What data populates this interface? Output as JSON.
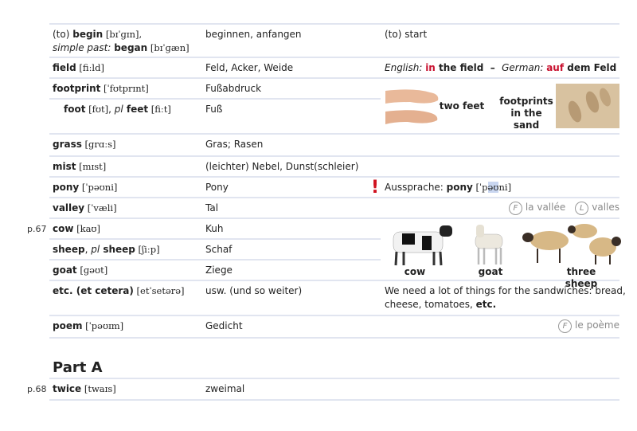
{
  "entries": [
    {
      "en": [
        [
          {
            "text": "(to) "
          },
          {
            "text": "begin",
            "style": "bold"
          },
          {
            "text": " [bɪˈɡɪn],",
            "style": "phonetic"
          }
        ],
        [
          {
            "text": "simple past: ",
            "style": "italic"
          },
          {
            "text": "began",
            "style": "bold"
          },
          {
            "text": " [bɪˈɡæn]",
            "style": "phonetic"
          }
        ]
      ],
      "de": "beginnen, anfangen",
      "note": [
        [
          {
            "text": "(to) start"
          }
        ]
      ]
    },
    {
      "en": [
        [
          {
            "text": "field",
            "style": "bold"
          },
          {
            "text": " [fiːld]",
            "style": "phonetic"
          }
        ]
      ],
      "de": "Feld, Acker, Weide",
      "note": [
        [
          {
            "text": "English: ",
            "style": "italic"
          },
          {
            "text": "in",
            "style": "red"
          },
          {
            "text": " the field  –  ",
            "style": "bold"
          },
          {
            "text": "German: ",
            "style": "italic"
          },
          {
            "text": "auf",
            "style": "red"
          },
          {
            "text": " dem Feld",
            "style": "bold"
          }
        ]
      ]
    },
    {
      "en": [
        [
          {
            "text": "footprint",
            "style": "bold"
          },
          {
            "text": " [ˈfʊtprɪnt]",
            "style": "phonetic"
          }
        ]
      ],
      "de": "Fußabdruck"
    },
    {
      "en": [
        [
          {
            "text": "foot",
            "style": "bold"
          },
          {
            "text": " [fʊt]",
            "style": "phonetic"
          },
          {
            "text": ", "
          },
          {
            "text": "pl",
            "style": "italic"
          },
          {
            "text": " feet",
            "style": "bold"
          },
          {
            "text": " [fiːt]",
            "style": "phonetic"
          }
        ]
      ],
      "de": "Fuß"
    },
    {
      "en": [
        [
          {
            "text": "grass",
            "style": "bold"
          },
          {
            "text": " [ɡrɑːs]",
            "style": "phonetic"
          }
        ]
      ],
      "de": "Gras; Rasen"
    },
    {
      "en": [
        [
          {
            "text": "mist",
            "style": "bold"
          },
          {
            "text": " [mɪst]",
            "style": "phonetic"
          }
        ]
      ],
      "de": "(leichter) Nebel, Dunst(schleier)"
    },
    {
      "en": [
        [
          {
            "text": "pony",
            "style": "bold"
          },
          {
            "text": " [ˈpəʊni]",
            "style": "phonetic"
          }
        ]
      ],
      "de": "Pony",
      "alert": "!",
      "note": [
        [
          {
            "text": "Aussprache: "
          },
          {
            "text": "pony",
            "style": "bold"
          },
          {
            "text": " [ˈp",
            "style": "phonetic"
          },
          {
            "text": "əʊ",
            "style": "highlight"
          },
          {
            "text": "ni]",
            "style": "phonetic"
          }
        ]
      ]
    },
    {
      "en": [
        [
          {
            "text": "valley",
            "style": "bold"
          },
          {
            "text": " [ˈvæli]",
            "style": "phonetic"
          }
        ]
      ],
      "de": "Tal",
      "cognates": [
        {
          "lang": "F",
          "word": "la vallée"
        },
        {
          "lang": "L",
          "word": "valles"
        }
      ]
    },
    {
      "margin": "p.67",
      "en": [
        [
          {
            "text": "cow",
            "style": "bold"
          },
          {
            "text": " [kaʊ]",
            "style": "phonetic"
          }
        ]
      ],
      "de": "Kuh"
    },
    {
      "en": [
        [
          {
            "text": "sheep",
            "style": "bold"
          },
          {
            "text": ", "
          },
          {
            "text": "pl",
            "style": "italic"
          },
          {
            "text": " sheep",
            "style": "bold"
          },
          {
            "text": " [ʃiːp]",
            "style": "phonetic"
          }
        ]
      ],
      "de": "Schaf"
    },
    {
      "en": [
        [
          {
            "text": "goat",
            "style": "bold"
          },
          {
            "text": " [ɡəʊt]",
            "style": "phonetic"
          }
        ]
      ],
      "de": "Ziege"
    },
    {
      "en": [
        [
          {
            "text": "etc. (et cetera)",
            "style": "bold"
          },
          {
            "text": " [etˈsetərə]",
            "style": "phonetic"
          }
        ]
      ],
      "de": "usw. (und so weiter)",
      "note": [
        [
          {
            "text": "We need a lot of things for the sandwiches: bread,"
          }
        ],
        [
          {
            "text": "cheese, tomatoes, "
          },
          {
            "text": "etc.",
            "style": "bold"
          }
        ]
      ]
    },
    {
      "en": [
        [
          {
            "text": "poem",
            "style": "bold"
          },
          {
            "text": " [ˈpəʊɪm]",
            "style": "phonetic"
          }
        ]
      ],
      "de": "Gedicht",
      "cognates": [
        {
          "lang": "F",
          "word": "le poème"
        }
      ]
    }
  ],
  "feet_images": [
    "two feet",
    "footprints in the sand"
  ],
  "animal_images": [
    "cow",
    "goat",
    "three sheep"
  ],
  "part_a": {
    "title": "Part A",
    "entries": [
      {
        "margin": "p.68",
        "en": [
          [
            {
              "text": "twice",
              "style": "bold"
            },
            {
              "text": " [twaɪs]",
              "style": "phonetic"
            }
          ]
        ],
        "de": "zweimal"
      }
    ]
  }
}
